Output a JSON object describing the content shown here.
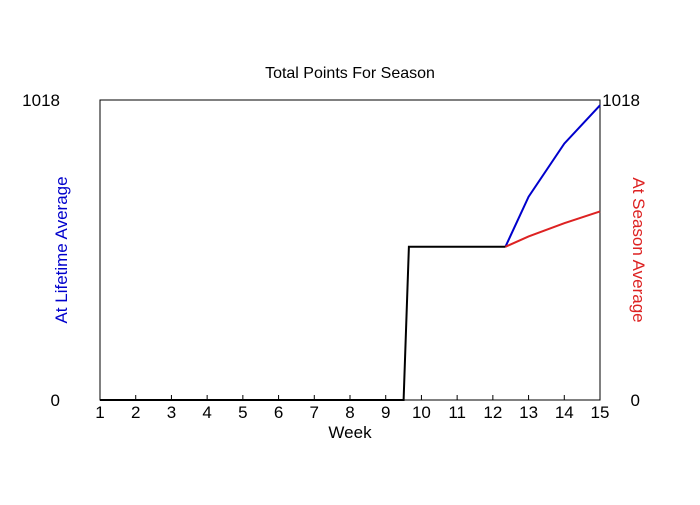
{
  "chart_data": {
    "type": "line",
    "title": "Total Points For Season",
    "xlabel": "Week",
    "ylabel_left": "At Lifetime Average",
    "ylabel_right": "At Season Average",
    "xlim": [
      1,
      15
    ],
    "ylim": [
      0,
      1018
    ],
    "x_ticks": [
      "1",
      "2",
      "3",
      "4",
      "5",
      "6",
      "7",
      "8",
      "9",
      "10",
      "11",
      "12",
      "13",
      "14",
      "15"
    ],
    "y_ticks_left": [
      "0",
      "1018"
    ],
    "y_ticks_right": [
      "0",
      "1018"
    ],
    "grid": false,
    "colors": {
      "lifetime": "#0000cc",
      "season": "#dd2222",
      "actual": "#000000"
    },
    "series": [
      {
        "key": "actual",
        "x": [
          1,
          9.5,
          9.65,
          12.35
        ],
        "y": [
          0,
          0,
          520,
          520
        ]
      },
      {
        "key": "lifetime",
        "x": [
          12.35,
          13,
          14,
          15
        ],
        "y": [
          520,
          690,
          870,
          1000
        ]
      },
      {
        "key": "season",
        "x": [
          12.35,
          13,
          14,
          15
        ],
        "y": [
          520,
          555,
          600,
          640
        ]
      }
    ]
  }
}
